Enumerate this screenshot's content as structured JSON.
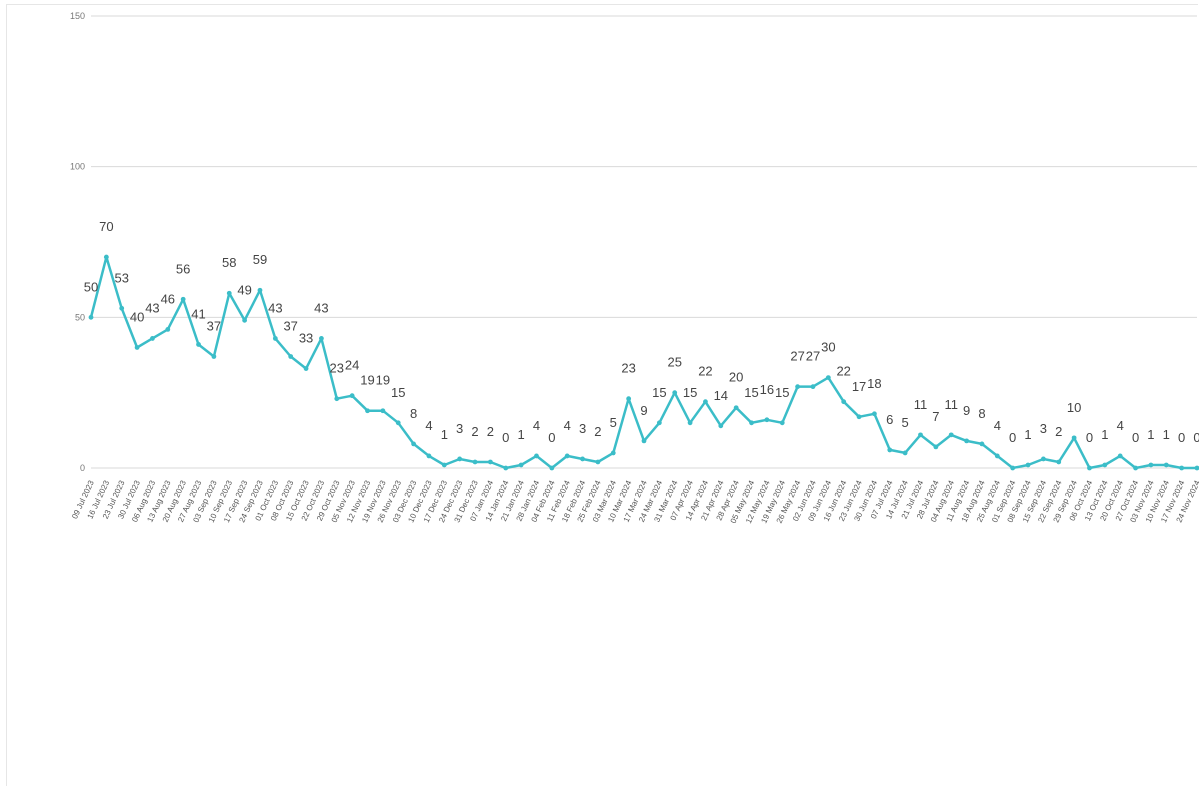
{
  "chart_data": {
    "type": "line",
    "title": "",
    "xlabel": "",
    "ylabel": "",
    "ylim": [
      0,
      150
    ],
    "yticks": [
      0,
      50,
      100,
      150
    ],
    "grid": true,
    "legend": "none",
    "color": "#3bbdc8",
    "x": [
      "09 Jul 2023",
      "16 Jul 2023",
      "23 Jul 2023",
      "30 Jul 2023",
      "06 Aug 2023",
      "13 Aug 2023",
      "20 Aug 2023",
      "27 Aug 2023",
      "03 Sep 2023",
      "10 Sep 2023",
      "17 Sep 2023",
      "24 Sep 2023",
      "01 Oct 2023",
      "08 Oct 2023",
      "15 Oct 2023",
      "22 Oct 2023",
      "29 Oct 2023",
      "05 Nov 2023",
      "12 Nov 2023",
      "19 Nov 2023",
      "26 Nov 2023",
      "03 Dec 2023",
      "10 Dec 2023",
      "17 Dec 2023",
      "24 Dec 2023",
      "31 Dec 2023",
      "07 Jan 2024",
      "14 Jan 2024",
      "21 Jan 2024",
      "28 Jan 2024",
      "04 Feb 2024",
      "11 Feb 2024",
      "18 Feb 2024",
      "25 Feb 2024",
      "03 Mar 2024",
      "10 Mar 2024",
      "17 Mar 2024",
      "24 Mar 2024",
      "31 Mar 2024",
      "07 Apr 2024",
      "14 Apr 2024",
      "21 Apr 2024",
      "28 Apr 2024",
      "05 May 2024",
      "12 May 2024",
      "19 May 2024",
      "26 May 2024",
      "02 Jun 2024",
      "09 Jun 2024",
      "16 Jun 2024",
      "23 Jun 2024",
      "30 Jun 2024",
      "07 Jul 2024",
      "14 Jul 2024",
      "21 Jul 2024",
      "28 Jul 2024",
      "04 Aug 2024",
      "11 Aug 2024",
      "18 Aug 2024",
      "25 Aug 2024",
      "01 Sep 2024",
      "08 Sep 2024",
      "15 Sep 2024",
      "22 Sep 2024",
      "29 Sep 2024",
      "06 Oct 2024",
      "13 Oct 2024",
      "20 Oct 2024",
      "27 Oct 2024",
      "03 Nov 2024",
      "10 Nov 2024",
      "17 Nov 2024",
      "24 Nov 2024"
    ],
    "series": [
      {
        "name": "",
        "values": [
          50,
          70,
          53,
          40,
          43,
          46,
          56,
          41,
          37,
          58,
          49,
          59,
          43,
          37,
          33,
          43,
          23,
          24,
          19,
          19,
          15,
          8,
          4,
          1,
          3,
          2,
          2,
          0,
          1,
          4,
          0,
          4,
          3,
          2,
          5,
          23,
          9,
          15,
          25,
          15,
          22,
          14,
          20,
          15,
          16,
          15,
          27,
          27,
          30,
          22,
          17,
          18,
          6,
          5,
          11,
          7,
          11,
          9,
          8,
          4,
          0,
          1,
          3,
          2,
          10,
          0,
          1,
          4,
          0,
          1,
          1,
          0,
          0
        ]
      }
    ]
  }
}
